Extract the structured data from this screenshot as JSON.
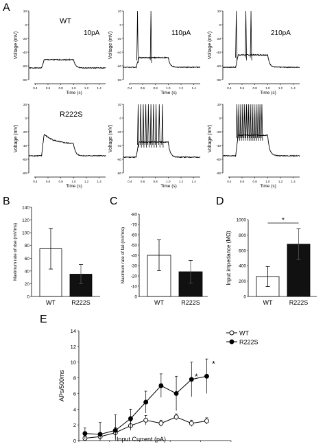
{
  "figure": {
    "panel_labels": {
      "A": "A",
      "B": "B",
      "C": "C",
      "D": "D",
      "E": "E"
    }
  },
  "chart_data": [
    {
      "id": "A-traces",
      "type": "line",
      "description_free": true,
      "ylabel": "Voltage (mV)",
      "xlabel": "Time (s)",
      "yticks": [
        "20",
        "0",
        "-20",
        "-40",
        "-60",
        "-80"
      ],
      "xticks": [
        "0.4",
        "0.6",
        "0.8",
        "1.0",
        "1.2",
        "1.4"
      ],
      "rows": [
        {
          "genotype": "WT",
          "panels": [
            {
              "current": "10pA",
              "baseline_mV": -63,
              "step_mV": -51,
              "spike_times_s": []
            },
            {
              "current": "110pA",
              "baseline_mV": -62,
              "step_mV": -48,
              "spike_times_s": [
                0.52,
                0.73
              ]
            },
            {
              "current": "210pA",
              "baseline_mV": -62,
              "step_mV": -44,
              "spike_times_s": [
                0.51,
                0.66,
                0.74
              ]
            }
          ]
        },
        {
          "genotype": "R222S",
          "panels": [
            {
              "current": "",
              "baseline_mV": -55,
              "step_mV": -38,
              "spike_times_s": []
            },
            {
              "current": "",
              "baseline_mV": -57,
              "step_mV": -35,
              "spike_times_s": [
                0.53,
                0.57,
                0.61,
                0.65,
                0.69,
                0.73,
                0.77,
                0.81,
                0.86,
                0.91
              ]
            },
            {
              "current": "",
              "baseline_mV": -55,
              "step_mV": -25,
              "spike_times_s": [
                0.52,
                0.55,
                0.58,
                0.61,
                0.64,
                0.67,
                0.7,
                0.73,
                0.76,
                0.79,
                0.82,
                0.85,
                0.88,
                0.91
              ]
            }
          ]
        }
      ],
      "step_window_s": [
        0.5,
        1.0
      ],
      "xlim": [
        0.3,
        1.5
      ],
      "ylim": [
        -80,
        20
      ]
    },
    {
      "id": "B",
      "type": "bar",
      "ylabel": "Maximum rate of rise (mV/ms)",
      "categories": [
        "WT",
        "R222S"
      ],
      "values": [
        75,
        35
      ],
      "errors": [
        32,
        15
      ],
      "colors": [
        "#ffffff",
        "#111111"
      ],
      "ylim": [
        0,
        140
      ],
      "yticks": [
        "0",
        "20",
        "40",
        "60",
        "80",
        "100",
        "120",
        "140"
      ]
    },
    {
      "id": "C",
      "type": "bar",
      "ylabel": "Maximum rate of fall (mV/ms)",
      "categories": [
        "WT",
        "R222S"
      ],
      "values": [
        40,
        24
      ],
      "errors": [
        15,
        11
      ],
      "colors": [
        "#ffffff",
        "#111111"
      ],
      "ylim": [
        0,
        80
      ],
      "yticks": [
        "0",
        "-10",
        "-20",
        "-30",
        "-40",
        "-50",
        "-60",
        "-70",
        "-80"
      ]
    },
    {
      "id": "D",
      "type": "bar",
      "ylabel": "Input impedance (MΩ)",
      "categories": [
        "WT",
        "R222S"
      ],
      "values": [
        260,
        680
      ],
      "errors": [
        130,
        200
      ],
      "colors": [
        "#ffffff",
        "#111111"
      ],
      "ylim": [
        0,
        1000
      ],
      "yticks": [
        "0",
        "200",
        "400",
        "600",
        "800",
        "1000"
      ],
      "significance": "*"
    },
    {
      "id": "E",
      "type": "line",
      "xlabel": "Input Current (pA)",
      "ylabel": "APs/500ms",
      "xlim": [
        0,
        250
      ],
      "ylim": [
        0,
        14
      ],
      "xticks": [
        "0",
        "50",
        "100",
        "150",
        "200",
        "250"
      ],
      "yticks": [
        "0",
        "2",
        "4",
        "6",
        "8",
        "10",
        "12",
        "14"
      ],
      "legend_position": "top-right",
      "series": [
        {
          "name": "WT",
          "marker": "open-circle",
          "x": [
            10,
            35,
            60,
            85,
            110,
            135,
            160,
            185,
            210
          ],
          "y": [
            0.3,
            0.5,
            1.0,
            1.9,
            2.6,
            2.2,
            3.0,
            2.2,
            2.5
          ],
          "err": [
            0.3,
            0.5,
            0.7,
            0.6,
            0.6,
            0.4,
            0.4,
            0.4,
            0.4
          ]
        },
        {
          "name": "R222S",
          "marker": "filled-circle",
          "x": [
            10,
            35,
            60,
            85,
            110,
            135,
            160,
            185,
            210
          ],
          "y": [
            0.9,
            0.8,
            1.3,
            2.8,
            4.9,
            7.0,
            6.0,
            7.8,
            8.2
          ],
          "err": [
            0.7,
            1.5,
            2.0,
            1.2,
            1.4,
            1.5,
            2.2,
            2.2,
            2.2
          ]
        }
      ],
      "significance": [
        "*",
        "*"
      ]
    }
  ]
}
